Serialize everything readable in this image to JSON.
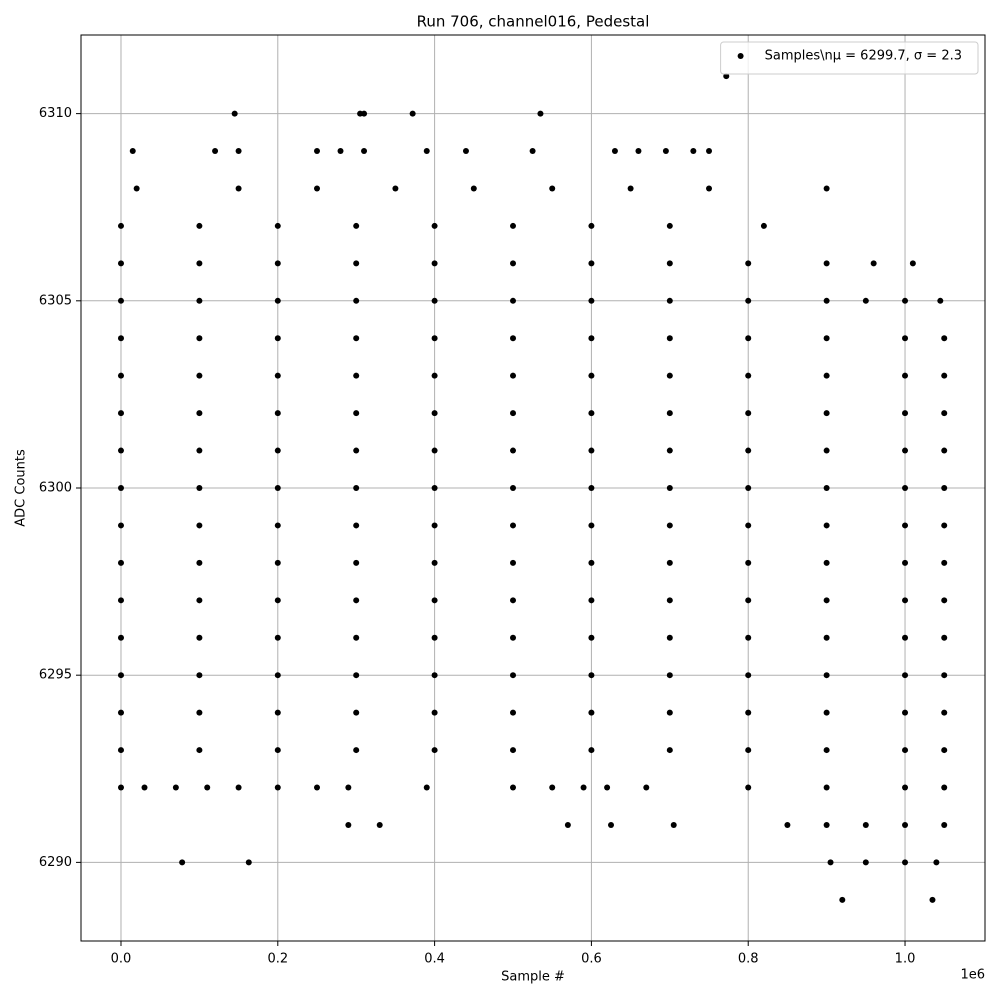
{
  "chart_data": {
    "type": "scatter",
    "title": "Run 706, channel016, Pedestal",
    "x_label": "Sample #",
    "y_label": "ADC Counts",
    "x_scale_label": "1e6",
    "xlim": [
      -0.051,
      1.102
    ],
    "ylim": [
      6287.9,
      6312.1
    ],
    "xticks": [
      {
        "value": 0,
        "label": "0.0"
      },
      0.2,
      0.4,
      0.6,
      0.8,
      {
        "value": 1,
        "label": "1.0"
      }
    ],
    "yticks": [
      6290,
      6295,
      6300,
      6305,
      6310
    ],
    "grid": true,
    "legend": "upper right",
    "x": [
      0,
      0.1,
      0.2,
      0.3,
      0.4,
      0.5,
      0.6,
      0.7,
      0.8,
      0.9,
      1.0,
      1.05,
      0,
      0.1,
      0.2,
      0.3,
      0.4,
      0.5,
      0.6,
      0.7,
      0.8,
      0.9,
      1.0,
      1.05,
      0,
      0.1,
      0.2,
      0.3,
      0.4,
      0.5,
      0.6,
      0.7,
      0.8,
      0.9,
      1.0,
      1.05,
      0,
      0.1,
      0.2,
      0.3,
      0.4,
      0.5,
      0.6,
      0.7,
      0.8,
      0.9,
      1.0,
      1.05,
      0,
      0.1,
      0.2,
      0.3,
      0.4,
      0.5,
      0.6,
      0.7,
      0.8,
      0.9,
      1.0,
      1.05,
      0,
      0.1,
      0.2,
      0.3,
      0.4,
      0.5,
      0.6,
      0.7,
      0.8,
      0.9,
      1.0,
      1.05,
      0,
      0.1,
      0.2,
      0.3,
      0.4,
      0.5,
      0.6,
      0.7,
      0.8,
      0.9,
      1.0,
      1.05,
      0,
      0.1,
      0.2,
      0.3,
      0.4,
      0.5,
      0.6,
      0.7,
      0.8,
      0.9,
      1.0,
      1.05,
      0,
      0.1,
      0.2,
      0.3,
      0.4,
      0.5,
      0.6,
      0.7,
      0.8,
      0.9,
      1.0,
      1.05,
      0,
      0.1,
      0.2,
      0.3,
      0.4,
      0.5,
      0.6,
      0.7,
      0.8,
      0.9,
      1.0,
      1.05,
      0,
      0.1,
      0.2,
      0.3,
      0.4,
      0.5,
      0.6,
      0.7,
      0.8,
      0.9,
      1.0,
      1.05,
      0,
      0.1,
      0.2,
      0.3,
      0.4,
      0.5,
      0.6,
      0.7,
      0.8,
      0.9,
      0.95,
      1.0,
      1.045,
      0,
      0.1,
      0.2,
      0.3,
      0.4,
      0.5,
      0.6,
      0.7,
      0.8,
      0.9,
      0.96,
      1.01,
      0,
      0.1,
      0.2,
      0.3,
      0.4,
      0.5,
      0.6,
      0.7,
      0.82,
      0.02,
      0.15,
      0.25,
      0.35,
      0.45,
      0.55,
      0.65,
      0.75,
      0.9,
      0.015,
      0.12,
      0.15,
      0.25,
      0.28,
      0.31,
      0.39,
      0.44,
      0.525,
      0.63,
      0.66,
      0.695,
      0.73,
      0.75,
      0.145,
      0.305,
      0.31,
      0.372,
      0.535,
      0.772,
      0,
      0.1,
      0.2,
      0.3,
      0.4,
      0.5,
      0.6,
      0.7,
      0.8,
      0.9,
      1.0,
      1.05,
      0,
      0.03,
      0.07,
      0.11,
      0.15,
      0.2,
      0.25,
      0.29,
      0.39,
      0.5,
      0.55,
      0.59,
      0.62,
      0.67,
      0.8,
      0.9,
      1.0,
      1.05,
      0.29,
      0.33,
      0.57,
      0.625,
      0.705,
      0.85,
      0.9,
      0.95,
      1.0,
      1.05,
      0.078,
      0.163,
      0.905,
      0.95,
      1.0,
      1.04,
      0.92,
      1.035
    ],
    "series": [
      {
        "name": "Samples\\nμ = 6299.7, σ = 2.3",
        "color": "#000000",
        "values": [
          6294,
          6294,
          6294,
          6294,
          6294,
          6294,
          6294,
          6294,
          6294,
          6294,
          6294,
          6294,
          6295,
          6295,
          6295,
          6295,
          6295,
          6295,
          6295,
          6295,
          6295,
          6295,
          6295,
          6295,
          6296,
          6296,
          6296,
          6296,
          6296,
          6296,
          6296,
          6296,
          6296,
          6296,
          6296,
          6296,
          6297,
          6297,
          6297,
          6297,
          6297,
          6297,
          6297,
          6297,
          6297,
          6297,
          6297,
          6297,
          6298,
          6298,
          6298,
          6298,
          6298,
          6298,
          6298,
          6298,
          6298,
          6298,
          6298,
          6298,
          6299,
          6299,
          6299,
          6299,
          6299,
          6299,
          6299,
          6299,
          6299,
          6299,
          6299,
          6299,
          6300,
          6300,
          6300,
          6300,
          6300,
          6300,
          6300,
          6300,
          6300,
          6300,
          6300,
          6300,
          6301,
          6301,
          6301,
          6301,
          6301,
          6301,
          6301,
          6301,
          6301,
          6301,
          6301,
          6301,
          6302,
          6302,
          6302,
          6302,
          6302,
          6302,
          6302,
          6302,
          6302,
          6302,
          6302,
          6302,
          6303,
          6303,
          6303,
          6303,
          6303,
          6303,
          6303,
          6303,
          6303,
          6303,
          6303,
          6303,
          6304,
          6304,
          6304,
          6304,
          6304,
          6304,
          6304,
          6304,
          6304,
          6304,
          6304,
          6304,
          6305,
          6305,
          6305,
          6305,
          6305,
          6305,
          6305,
          6305,
          6305,
          6305,
          6305,
          6305,
          6305,
          6306,
          6306,
          6306,
          6306,
          6306,
          6306,
          6306,
          6306,
          6306,
          6306,
          6306,
          6306,
          6307,
          6307,
          6307,
          6307,
          6307,
          6307,
          6307,
          6307,
          6307,
          6308,
          6308,
          6308,
          6308,
          6308,
          6308,
          6308,
          6308,
          6308,
          6309,
          6309,
          6309,
          6309,
          6309,
          6309,
          6309,
          6309,
          6309,
          6309,
          6309,
          6309,
          6309,
          6309,
          6310,
          6310,
          6310,
          6310,
          6310,
          6311,
          6293,
          6293,
          6293,
          6293,
          6293,
          6293,
          6293,
          6293,
          6293,
          6293,
          6293,
          6293,
          6292,
          6292,
          6292,
          6292,
          6292,
          6292,
          6292,
          6292,
          6292,
          6292,
          6292,
          6292,
          6292,
          6292,
          6292,
          6292,
          6292,
          6292,
          6291,
          6291,
          6291,
          6291,
          6291,
          6291,
          6291,
          6291,
          6291,
          6291,
          6290,
          6290,
          6290,
          6290,
          6290,
          6290,
          6289,
          6289
        ]
      }
    ]
  }
}
